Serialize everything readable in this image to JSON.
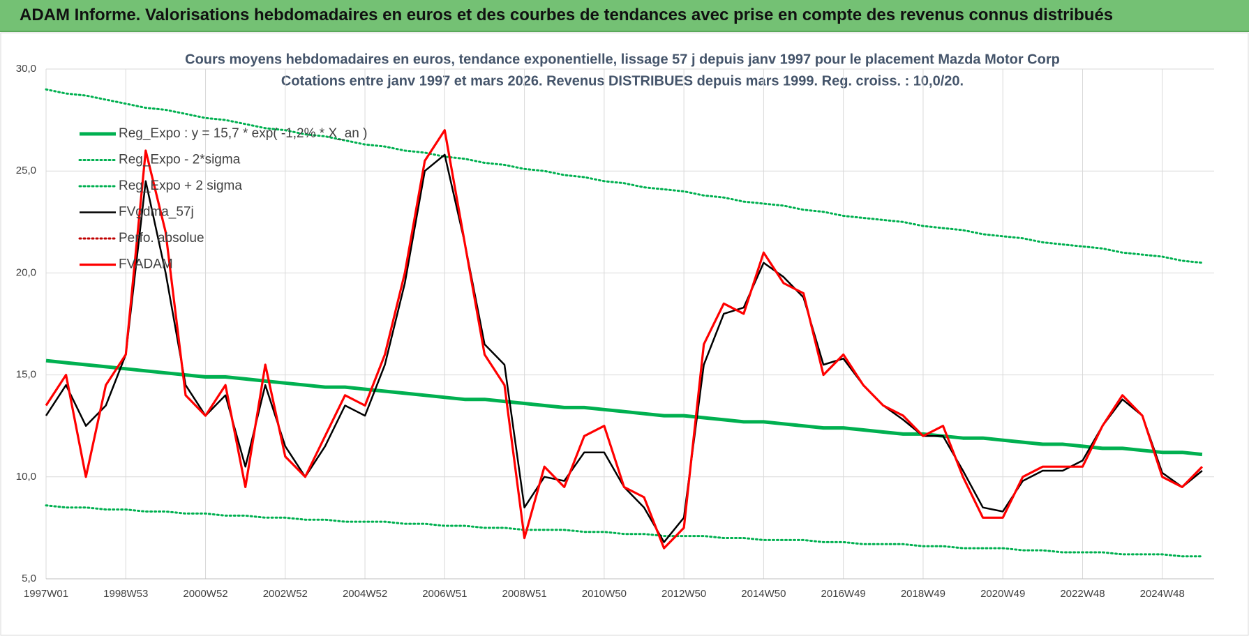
{
  "header": {
    "title": "ADAM Informe. Valorisations hebdomadaires en euros et des courbes de tendances avec prise en compte des revenus connus distribués"
  },
  "chart_data": {
    "type": "line",
    "title": "Cours moyens hebdomadaires en euros, tendance exponentielle, lissage 57 j depuis janv 1997 pour le placement Mazda Motor Corp",
    "subtitle": "Cotations entre janv 1997 et mars 2026. Revenus DISTRIBUES depuis mars 1999. Reg. croiss. : 10,0/20.",
    "categories": [
      "1997W01",
      null,
      null,
      null,
      "1998W53",
      null,
      null,
      null,
      "2000W52",
      null,
      null,
      null,
      "2002W52",
      null,
      null,
      null,
      "2004W52",
      null,
      null,
      null,
      "2006W51",
      null,
      null,
      null,
      "2008W51",
      null,
      null,
      null,
      "2010W50",
      null,
      null,
      null,
      "2012W50",
      null,
      null,
      null,
      "2014W50",
      null,
      null,
      null,
      "2016W49",
      null,
      null,
      null,
      "2018W49",
      null,
      null,
      null,
      "2020W49",
      null,
      null,
      null,
      "2022W48",
      null,
      null,
      null,
      "2024W48",
      null,
      null
    ],
    "ylim": [
      5,
      30
    ],
    "yticks": [
      {
        "value": 5,
        "label": "5,0"
      },
      {
        "value": 10,
        "label": "10,0"
      },
      {
        "value": 15,
        "label": "15,0"
      },
      {
        "value": 20,
        "label": "20,0"
      },
      {
        "value": 25,
        "label": "25,0"
      },
      {
        "value": 30,
        "label": "30,0"
      }
    ],
    "grid": true,
    "legend": "upper left",
    "series": [
      {
        "name": "Reg_Expo : y = 15,7 * exp( -1,2% * X_an )",
        "color": "#00b050",
        "line_style": "thick",
        "values": [
          15.7,
          15.6,
          15.5,
          15.4,
          15.3,
          15.2,
          15.1,
          15.0,
          14.9,
          14.9,
          14.8,
          14.7,
          14.6,
          14.5,
          14.4,
          14.4,
          14.3,
          14.2,
          14.1,
          14.0,
          13.9,
          13.8,
          13.8,
          13.7,
          13.6,
          13.5,
          13.4,
          13.4,
          13.3,
          13.2,
          13.1,
          13.0,
          13.0,
          12.9,
          12.8,
          12.7,
          12.7,
          12.6,
          12.5,
          12.4,
          12.4,
          12.3,
          12.2,
          12.1,
          12.1,
          12.0,
          11.9,
          11.9,
          11.8,
          11.7,
          11.6,
          11.6,
          11.5,
          11.4,
          11.4,
          11.3,
          11.2,
          11.2,
          11.1
        ]
      },
      {
        "name": "Reg_Expo - 2*sigma",
        "color": "#00b050",
        "line_style": "dotted",
        "values": [
          8.6,
          8.5,
          8.5,
          8.4,
          8.4,
          8.3,
          8.3,
          8.2,
          8.2,
          8.1,
          8.1,
          8.0,
          8.0,
          7.9,
          7.9,
          7.8,
          7.8,
          7.8,
          7.7,
          7.7,
          7.6,
          7.6,
          7.5,
          7.5,
          7.4,
          7.4,
          7.4,
          7.3,
          7.3,
          7.2,
          7.2,
          7.1,
          7.1,
          7.1,
          7.0,
          7.0,
          6.9,
          6.9,
          6.9,
          6.8,
          6.8,
          6.7,
          6.7,
          6.7,
          6.6,
          6.6,
          6.5,
          6.5,
          6.5,
          6.4,
          6.4,
          6.3,
          6.3,
          6.3,
          6.2,
          6.2,
          6.2,
          6.1,
          6.1
        ]
      },
      {
        "name": "Reg_Expo + 2 sigma",
        "color": "#00b050",
        "line_style": "dotted",
        "values": [
          29.0,
          28.8,
          28.7,
          28.5,
          28.3,
          28.1,
          28.0,
          27.8,
          27.6,
          27.5,
          27.3,
          27.1,
          27.0,
          26.8,
          26.7,
          26.5,
          26.3,
          26.2,
          26.0,
          25.9,
          25.7,
          25.6,
          25.4,
          25.3,
          25.1,
          25.0,
          24.8,
          24.7,
          24.5,
          24.4,
          24.2,
          24.1,
          24.0,
          23.8,
          23.7,
          23.5,
          23.4,
          23.3,
          23.1,
          23.0,
          22.8,
          22.7,
          22.6,
          22.5,
          22.3,
          22.2,
          22.1,
          21.9,
          21.8,
          21.7,
          21.5,
          21.4,
          21.3,
          21.2,
          21.0,
          20.9,
          20.8,
          20.6,
          20.5
        ]
      },
      {
        "name": "FVgdma_57j",
        "color": "#000000",
        "line_style": "solid",
        "values": [
          13.0,
          14.5,
          12.5,
          13.5,
          16.0,
          24.5,
          20.0,
          14.5,
          13.0,
          14.0,
          10.5,
          14.5,
          11.5,
          10.0,
          11.5,
          13.5,
          13.0,
          15.5,
          19.5,
          25.0,
          25.8,
          21.5,
          16.5,
          15.5,
          8.5,
          10.0,
          9.8,
          11.2,
          11.2,
          9.5,
          8.5,
          6.8,
          8.0,
          15.5,
          18.0,
          18.3,
          20.5,
          19.8,
          18.8,
          15.5,
          15.8,
          14.5,
          13.5,
          12.8,
          12.0,
          12.0,
          10.3,
          8.5,
          8.3,
          9.8,
          10.3,
          10.3,
          10.8,
          12.5,
          13.8,
          13.0,
          10.2,
          9.5,
          10.3
        ]
      },
      {
        "name": "Perfo. absolue",
        "color": "#c00000",
        "line_style": "dotted",
        "values": [
          null,
          null,
          null,
          null,
          null,
          null,
          null,
          null,
          null,
          null,
          null,
          null,
          null,
          null,
          null,
          null,
          null,
          null,
          null,
          null,
          null,
          null,
          null,
          null,
          null,
          null,
          null,
          null,
          null,
          null,
          null,
          null,
          null,
          null,
          null,
          null,
          null,
          null,
          null,
          null,
          null,
          null,
          null,
          null,
          null,
          null,
          null,
          null,
          null,
          null,
          null,
          null,
          null,
          null,
          null,
          null,
          null,
          null,
          null
        ]
      },
      {
        "name": "FVADAM",
        "color": "#ff0000",
        "line_style": "thick-red",
        "values": [
          13.5,
          15.0,
          10.0,
          14.5,
          16.0,
          26.0,
          22.0,
          14.0,
          13.0,
          14.5,
          9.5,
          15.5,
          11.0,
          10.0,
          12.0,
          14.0,
          13.5,
          16.0,
          20.0,
          25.5,
          27.0,
          21.5,
          16.0,
          14.5,
          7.0,
          10.5,
          9.5,
          12.0,
          12.5,
          9.5,
          9.0,
          6.5,
          7.5,
          16.5,
          18.5,
          18.0,
          21.0,
          19.5,
          19.0,
          15.0,
          16.0,
          14.5,
          13.5,
          13.0,
          12.0,
          12.5,
          10.0,
          8.0,
          8.0,
          10.0,
          10.5,
          10.5,
          10.5,
          12.5,
          14.0,
          13.0,
          10.0,
          9.5,
          10.5
        ]
      }
    ]
  }
}
